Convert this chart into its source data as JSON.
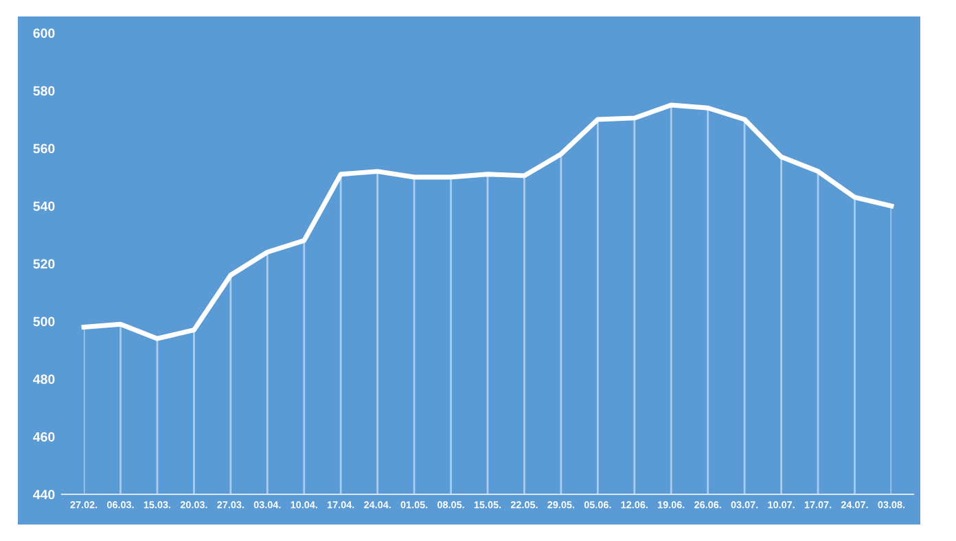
{
  "chart_data": {
    "type": "line",
    "categories": [
      "27.02.",
      "06.03.",
      "15.03.",
      "20.03.",
      "27.03.",
      "03.04.",
      "10.04.",
      "17.04.",
      "24.04.",
      "01.05.",
      "08.05.",
      "15.05.",
      "22.05.",
      "29.05.",
      "05.06.",
      "12.06.",
      "19.06.",
      "26.06.",
      "03.07.",
      "10.07.",
      "17.07.",
      "24.07.",
      "03.08."
    ],
    "series": [
      {
        "color": "#ffffff",
        "values": [
          498,
          499,
          494,
          497,
          516,
          524,
          528,
          551,
          552,
          550,
          550,
          551,
          550.5,
          558,
          570,
          570.5,
          575,
          574,
          570,
          557,
          552,
          543,
          540
        ]
      }
    ],
    "ylim": [
      440,
      600
    ],
    "yticks": [
      440,
      460,
      480,
      500,
      520,
      540,
      560,
      580,
      600
    ],
    "grid": "x",
    "legend": false,
    "marker": "none",
    "line_style": "solid"
  }
}
